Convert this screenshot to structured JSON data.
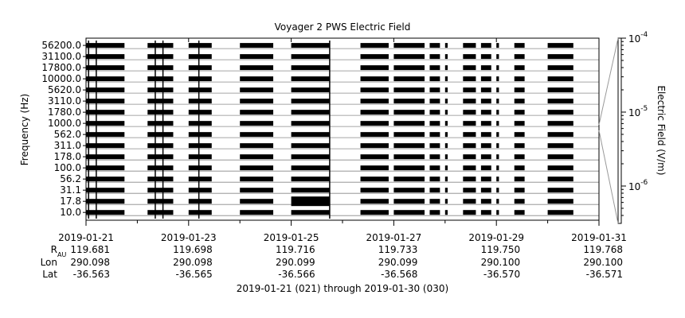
{
  "chart_data": {
    "type": "heatmap",
    "title": "Voyager 2 PWS Electric Field",
    "ylabel": "Frequency (Hz)",
    "colorbar_label": "Electric Field (V/m)",
    "y_channels": [
      "10.0",
      "17.8",
      "31.1",
      "56.2",
      "100.0",
      "178.0",
      "311.0",
      "562.0",
      "1000.0",
      "1780.0",
      "3110.0",
      "5620.0",
      "10000.0",
      "17800.0",
      "31100.0",
      "56200.0"
    ],
    "x_start": "2019-01-21",
    "x_end": "2019-01-31",
    "x_ticks": [
      "2019-01-21",
      "2019-01-23",
      "2019-01-25",
      "2019-01-27",
      "2019-01-29",
      "2019-01-31"
    ],
    "minor_ticks_days": [
      1,
      3,
      5,
      7,
      9
    ],
    "colorbar": {
      "scale": "log",
      "range_label_bottom": "",
      "ticks": [
        {
          "base": "10",
          "exp": "-4"
        },
        {
          "base": "10",
          "exp": "-5"
        },
        {
          "base": "10",
          "exp": "-6"
        }
      ]
    },
    "ephemeris": {
      "labels": {
        "r": "R",
        "r_sub": "AU",
        "lon": "Lon",
        "lat": "Lat"
      },
      "columns": [
        {
          "r": "119.681",
          "lon": "290.098",
          "lat": "-36.563"
        },
        {
          "r": "119.698",
          "lon": "290.098",
          "lat": "-36.565"
        },
        {
          "r": "119.716",
          "lon": "290.099",
          "lat": "-36.566"
        },
        {
          "r": "119.733",
          "lon": "290.099",
          "lat": "-36.568"
        },
        {
          "r": "119.750",
          "lon": "290.100",
          "lat": "-36.570"
        },
        {
          "r": "119.768",
          "lon": "290.100",
          "lat": "-36.571"
        }
      ]
    },
    "data_segments_days": [
      [
        0.0,
        0.75
      ],
      [
        1.2,
        1.7
      ],
      [
        2.0,
        2.45
      ],
      [
        3.0,
        3.65
      ],
      [
        4.0,
        4.75
      ],
      [
        5.35,
        5.9
      ],
      [
        6.0,
        6.6
      ],
      [
        6.7,
        6.9
      ],
      [
        7.0,
        7.05
      ],
      [
        7.35,
        7.6
      ],
      [
        7.7,
        7.9
      ],
      [
        8.0,
        8.05
      ],
      [
        8.35,
        8.55
      ],
      [
        9.0,
        9.5
      ]
    ],
    "spikes_days": [
      0.05,
      0.2,
      1.35,
      1.5,
      2.2,
      4.75
    ],
    "footer": "2019-01-21 (021) through 2019-01-30 (030)"
  }
}
